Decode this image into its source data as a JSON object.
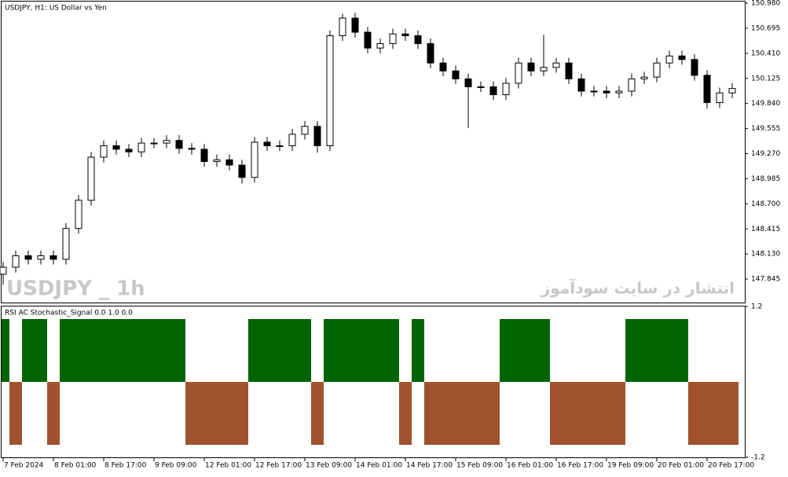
{
  "chart_data": [
    {
      "type": "candlestick",
      "title": "USDJPY, H1:  US Dollar vs Yen",
      "watermark": "USDJPY _ 1h",
      "annotation": "انتشار در سایت سودآموز",
      "categories": [
        "7 Feb 2024",
        null,
        null,
        null,
        "8 Feb 01:00",
        null,
        null,
        null,
        "8 Feb 17:00",
        null,
        null,
        null,
        "9 Feb 09:00",
        null,
        null,
        null,
        "12 Feb 01:00",
        null,
        null,
        null,
        "12 Feb 17:00",
        null,
        null,
        null,
        "13 Feb 09:00",
        null,
        null,
        null,
        "14 Feb 01:00",
        null,
        null,
        null,
        "14 Feb 17:00",
        null,
        null,
        null,
        "15 Feb 09:00",
        null,
        null,
        null,
        "16 Feb 01:00",
        null,
        null,
        null,
        "16 Feb 17:00",
        null,
        null,
        null,
        "19 Feb 09:00",
        null,
        null,
        null,
        "20 Feb 01:00",
        null,
        null,
        null,
        "20 Feb 17:00",
        null,
        null
      ],
      "open": [
        147.9,
        147.98,
        148.11,
        148.07,
        148.11,
        148.07,
        148.42,
        148.74,
        149.23,
        149.36,
        149.32,
        149.29,
        149.39,
        149.39,
        149.42,
        149.33,
        149.32,
        149.18,
        149.2,
        149.14,
        149.0,
        149.4,
        149.36,
        149.36,
        149.49,
        149.58,
        149.36,
        150.61,
        150.81,
        150.65,
        150.47,
        150.52,
        150.63,
        150.61,
        150.52,
        150.3,
        150.21,
        150.12,
        150.03,
        150.03,
        149.94,
        150.07,
        150.3,
        150.21,
        150.25,
        150.3,
        150.12,
        149.98,
        149.98,
        149.96,
        149.98,
        150.12,
        150.14,
        150.3,
        150.38,
        150.34,
        150.16,
        149.85,
        149.96
      ],
      "high": [
        148.04,
        148.17,
        148.17,
        148.17,
        148.17,
        148.48,
        148.8,
        149.29,
        149.42,
        149.42,
        149.38,
        149.45,
        149.45,
        149.48,
        149.48,
        149.39,
        149.38,
        149.26,
        149.26,
        149.2,
        149.46,
        149.46,
        149.42,
        149.55,
        149.64,
        149.64,
        150.67,
        150.86,
        150.87,
        150.71,
        150.58,
        150.69,
        150.69,
        150.67,
        150.58,
        150.36,
        150.27,
        150.18,
        150.09,
        150.09,
        150.13,
        150.36,
        150.36,
        150.62,
        150.36,
        150.36,
        150.18,
        150.04,
        150.04,
        150.04,
        150.18,
        150.2,
        150.36,
        150.44,
        150.44,
        150.4,
        150.22,
        150.02,
        150.07
      ],
      "low": [
        147.78,
        147.92,
        148.01,
        148.01,
        148.01,
        148.01,
        148.36,
        148.68,
        149.17,
        149.26,
        149.23,
        149.23,
        149.33,
        149.33,
        149.27,
        149.26,
        149.12,
        149.12,
        149.08,
        148.93,
        148.94,
        149.3,
        149.3,
        149.3,
        149.43,
        149.28,
        149.3,
        150.55,
        150.59,
        150.41,
        150.41,
        150.46,
        150.55,
        150.46,
        150.24,
        150.15,
        150.06,
        149.56,
        149.97,
        149.88,
        149.88,
        150.01,
        150.15,
        150.15,
        150.19,
        150.06,
        149.92,
        149.92,
        149.9,
        149.9,
        149.92,
        150.06,
        150.08,
        150.24,
        150.28,
        150.1,
        149.78,
        149.79,
        149.9
      ],
      "close": [
        147.98,
        148.11,
        148.07,
        148.11,
        148.07,
        148.42,
        148.74,
        149.23,
        149.36,
        149.32,
        149.29,
        149.39,
        149.39,
        149.42,
        149.33,
        149.32,
        149.18,
        149.2,
        149.14,
        149.0,
        149.4,
        149.36,
        149.36,
        149.49,
        149.58,
        149.36,
        150.61,
        150.81,
        150.65,
        150.47,
        150.52,
        150.63,
        150.61,
        150.52,
        150.3,
        150.21,
        150.12,
        150.03,
        150.03,
        149.94,
        150.07,
        150.3,
        150.21,
        150.25,
        150.3,
        150.12,
        149.98,
        149.98,
        149.96,
        149.98,
        150.12,
        150.14,
        150.3,
        150.38,
        150.34,
        150.16,
        149.85,
        149.96,
        150.01
      ],
      "color": "#000000",
      "ylim": [
        147.578,
        151.007
      ],
      "yticks": [
        {
          "value": 150.98,
          "label": "150.980"
        },
        150.695,
        {
          "value": 150.41,
          "label": "150.410"
        },
        150.125,
        {
          "value": 149.84,
          "label": "149.840"
        },
        149.555,
        {
          "value": 149.27,
          "label": "149.270"
        },
        148.985,
        {
          "value": 148.7,
          "label": "148.700"
        },
        148.415,
        {
          "value": 148.13,
          "label": "148.130"
        },
        147.845
      ]
    },
    {
      "type": "histogram-signal",
      "title": "RSI AC Stochastic_Signal 0.0 1.0 0.0",
      "values": [
        1,
        -1,
        1,
        1,
        -1,
        1,
        1,
        1,
        1,
        1,
        1,
        1,
        1,
        1,
        1,
        -1,
        -1,
        -1,
        -1,
        -1,
        1,
        1,
        1,
        1,
        1,
        -1,
        1,
        1,
        1,
        1,
        1,
        1,
        -1,
        1,
        -1,
        -1,
        -1,
        -1,
        -1,
        -1,
        1,
        1,
        1,
        1,
        -1,
        -1,
        -1,
        -1,
        -1,
        -1,
        1,
        1,
        1,
        1,
        1,
        -1,
        -1,
        -1,
        -1
      ],
      "up_color": "#006400",
      "down_color": "#a0522d",
      "ylim": [
        -1.2,
        1.2
      ],
      "yticks": [
        1.2,
        -1.2
      ]
    }
  ]
}
